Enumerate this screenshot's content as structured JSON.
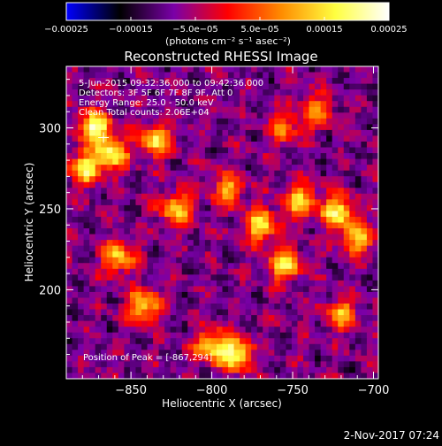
{
  "colorbar": {
    "tick_labels": [
      "-0.00025",
      "-0.00015",
      "-5.0e-05",
      "5.0e-05",
      "0.00015",
      "0.00025"
    ],
    "unit_label": "(photons cm⁻² s⁻¹ asec⁻²)",
    "range": [
      -0.00025,
      0.00025
    ],
    "colormap": [
      "#0000ff",
      "#000000",
      "#7a00a8",
      "#ff0000",
      "#ff8c00",
      "#ffff40",
      "#ffffff"
    ]
  },
  "chart_data": {
    "type": "heatmap",
    "title": "Reconstructed RHESSI Image",
    "xlabel": "Heliocentric X (arcsec)",
    "ylabel": "Heliocentric Y (arcsec)",
    "xlim": [
      -890,
      -697
    ],
    "ylim": [
      145,
      338
    ],
    "x_ticks": [
      -850,
      -800,
      -750,
      -700
    ],
    "y_ticks": [
      200,
      250,
      300
    ],
    "x_tick_labels": [
      "-850",
      "-800",
      "-750",
      "-700"
    ],
    "y_tick_labels": [
      "200",
      "250",
      "300"
    ],
    "grid": false,
    "annotations": [
      "5-Jun-2015 09:32:36.000 to 09:42:36.000",
      "Detectors: 3F 5F 6F 7F 8F 9F, Att 0",
      "Energy Range: 25.0 - 50.0 keV",
      "Clean  Total counts: 2.06E+04",
      "Position of Peak = [-867,294]"
    ],
    "peak": [
      -867,
      294
    ],
    "peak_value": 0.00025,
    "hot_regions": [
      {
        "x": -872,
        "y": 300,
        "level": 0.95
      },
      {
        "x": -862,
        "y": 284,
        "level": 0.85
      },
      {
        "x": -878,
        "y": 275,
        "level": 0.8
      },
      {
        "x": -835,
        "y": 292,
        "level": 0.75
      },
      {
        "x": -822,
        "y": 250,
        "level": 0.7
      },
      {
        "x": -790,
        "y": 262,
        "level": 0.6
      },
      {
        "x": -770,
        "y": 240,
        "level": 0.8
      },
      {
        "x": -745,
        "y": 255,
        "level": 0.75
      },
      {
        "x": -755,
        "y": 215,
        "level": 0.8
      },
      {
        "x": -722,
        "y": 248,
        "level": 0.85
      },
      {
        "x": -710,
        "y": 232,
        "level": 0.7
      },
      {
        "x": -785,
        "y": 160,
        "level": 0.9
      },
      {
        "x": -800,
        "y": 165,
        "level": 0.8
      },
      {
        "x": -842,
        "y": 190,
        "level": 0.75
      },
      {
        "x": -858,
        "y": 220,
        "level": 0.7
      },
      {
        "x": -720,
        "y": 185,
        "level": 0.6
      },
      {
        "x": -735,
        "y": 310,
        "level": 0.55
      },
      {
        "x": -755,
        "y": 300,
        "level": 0.5
      }
    ]
  },
  "footer": {
    "date": "2-Nov-2017 07:24"
  }
}
